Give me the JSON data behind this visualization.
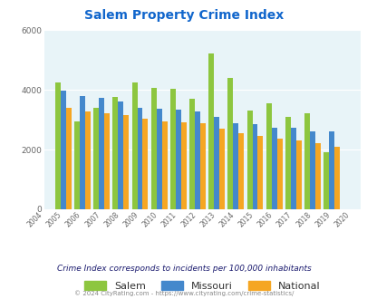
{
  "title": "Salem Property Crime Index",
  "years": [
    2004,
    2005,
    2006,
    2007,
    2008,
    2009,
    2010,
    2011,
    2012,
    2013,
    2014,
    2015,
    2016,
    2017,
    2018,
    2019,
    2020
  ],
  "salem": [
    null,
    4250,
    2950,
    3400,
    3750,
    4250,
    4050,
    4020,
    3700,
    5200,
    4400,
    3300,
    3550,
    3100,
    3200,
    1900,
    null
  ],
  "missouri": [
    null,
    3980,
    3780,
    3720,
    3620,
    3380,
    3350,
    3320,
    3280,
    3080,
    2870,
    2860,
    2720,
    2730,
    2600,
    2600,
    null
  ],
  "national": [
    null,
    3380,
    3270,
    3220,
    3140,
    3020,
    2940,
    2900,
    2870,
    2700,
    2560,
    2440,
    2370,
    2290,
    2200,
    2090,
    null
  ],
  "salem_color": "#8dc63f",
  "missouri_color": "#4488cc",
  "national_color": "#f5a623",
  "bg_color": "#e8f4f8",
  "title_color": "#1166cc",
  "legend_text_color": "#333333",
  "subtitle": "Crime Index corresponds to incidents per 100,000 inhabitants",
  "subtitle_color": "#1a1a6e",
  "footer": "© 2024 CityRating.com - https://www.cityrating.com/crime-statistics/",
  "footer_color": "#888888",
  "ylim": [
    0,
    6000
  ],
  "yticks": [
    0,
    2000,
    4000,
    6000
  ]
}
